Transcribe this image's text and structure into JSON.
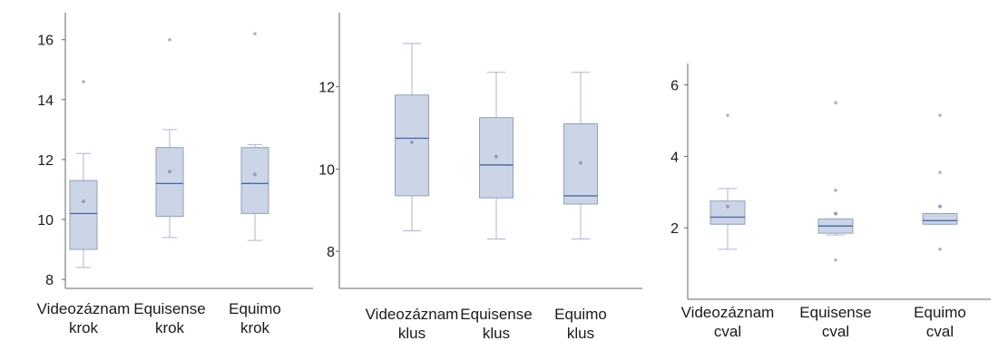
{
  "chart_data": [
    {
      "type": "box",
      "title": "",
      "xlabel": "",
      "ylabel": "",
      "ylim": [
        7.7,
        16.9
      ],
      "yticks": [
        8,
        10,
        12,
        14,
        16
      ],
      "grid": false,
      "colors": {
        "fill": "#cbd5e6",
        "edge": "#8fa0c3",
        "median": "#4e6aab",
        "mean": "#8fa0c3",
        "whisker": "#aab6d2",
        "outlier": "#a9b3cb"
      },
      "categories": [
        "Videozáznam\nkrok",
        "Equisense\nkrok",
        "Equimo\nkrok"
      ],
      "boxes": [
        {
          "min": 8.4,
          "q1": 9.0,
          "median": 10.2,
          "q3": 11.3,
          "max": 12.2,
          "mean": 10.6,
          "outliers": [
            14.6
          ]
        },
        {
          "min": 9.4,
          "q1": 10.1,
          "median": 11.2,
          "q3": 12.4,
          "max": 13.0,
          "mean": 11.6,
          "outliers": [
            16.0
          ]
        },
        {
          "min": 9.3,
          "q1": 10.2,
          "median": 11.2,
          "q3": 12.4,
          "max": 12.5,
          "mean": 11.5,
          "outliers": [
            16.2
          ]
        }
      ]
    },
    {
      "type": "box",
      "title": "",
      "xlabel": "",
      "ylabel": "",
      "ylim": [
        7.1,
        13.8
      ],
      "yticks": [
        8,
        10,
        12
      ],
      "grid": false,
      "colors": {
        "fill": "#cbd5e6",
        "edge": "#8fa0c3",
        "median": "#4e6aab",
        "mean": "#8fa0c3",
        "whisker": "#aab6d2",
        "outlier": "#a9b3cb"
      },
      "categories": [
        "Videozáznam\nklus",
        "Equisense\nklus",
        "Equimo\nklus"
      ],
      "boxes": [
        {
          "min": 8.5,
          "q1": 9.35,
          "median": 10.75,
          "q3": 11.8,
          "max": 13.05,
          "mean": 10.65,
          "outliers": []
        },
        {
          "min": 8.3,
          "q1": 9.3,
          "median": 10.1,
          "q3": 11.25,
          "max": 12.35,
          "mean": 10.3,
          "outliers": []
        },
        {
          "min": 8.3,
          "q1": 9.15,
          "median": 9.35,
          "q3": 11.1,
          "max": 12.35,
          "mean": 10.15,
          "outliers": []
        }
      ]
    },
    {
      "type": "box",
      "title": "",
      "xlabel": "",
      "ylabel": "",
      "ylim": [
        0.0,
        6.6
      ],
      "yticks": [
        2,
        4,
        6
      ],
      "grid": false,
      "colors": {
        "fill": "#cbd5e6",
        "edge": "#8fa0c3",
        "median": "#4e6aab",
        "mean": "#8fa0c3",
        "whisker": "#aab6d2",
        "outlier": "#a9b3cb"
      },
      "categories": [
        "Videozáznam\ncval",
        "Equisense\ncval",
        "Equimo\ncval"
      ],
      "boxes": [
        {
          "min": 1.4,
          "q1": 2.1,
          "median": 2.3,
          "q3": 2.75,
          "max": 3.1,
          "mean": 2.6,
          "outliers": [
            5.15
          ]
        },
        {
          "min": 1.8,
          "q1": 1.85,
          "median": 2.05,
          "q3": 2.25,
          "max": 2.25,
          "mean": 2.4,
          "outliers": [
            5.5,
            3.05,
            1.1
          ]
        },
        {
          "min": 2.1,
          "q1": 2.1,
          "median": 2.2,
          "q3": 2.4,
          "max": 2.4,
          "mean": 2.6,
          "outliers": [
            5.15,
            3.55,
            1.4
          ]
        }
      ]
    }
  ]
}
